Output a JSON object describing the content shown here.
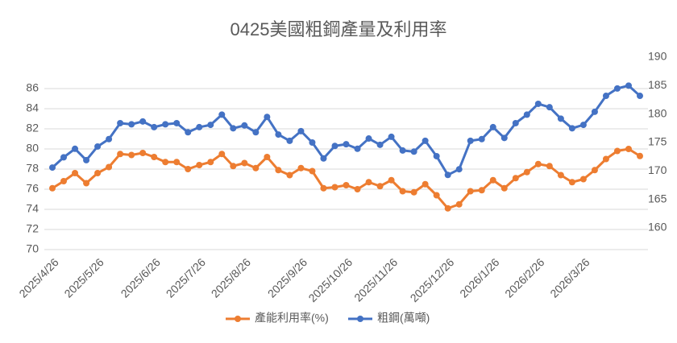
{
  "chart_data": {
    "type": "line",
    "title": "0425美國粗鋼產量及利用率",
    "categories": [
      "2025/4/26",
      null,
      null,
      null,
      "2025/5/26",
      null,
      null,
      null,
      null,
      "2025/6/26",
      null,
      null,
      null,
      "2025/7/26",
      null,
      null,
      null,
      "2025/8/26",
      null,
      null,
      null,
      null,
      "2025/9/26",
      null,
      null,
      null,
      "2025/10/26",
      null,
      null,
      null,
      "2025/11/26",
      null,
      null,
      null,
      null,
      "2025/12/26",
      null,
      null,
      null,
      "2026/1/26",
      null,
      null,
      null,
      "2026/2/26",
      null,
      null,
      null,
      "2026/3/26",
      null,
      null,
      null,
      null,
      null
    ],
    "series": [
      {
        "name": "產能利用率(%)",
        "color": "#ed7d31",
        "values": [
          76.1,
          76.8,
          77.6,
          76.6,
          77.6,
          78.2,
          79.5,
          79.4,
          79.6,
          79.2,
          78.7,
          78.7,
          78.0,
          78.4,
          78.7,
          79.5,
          78.3,
          78.6,
          78.1,
          79.2,
          77.9,
          77.4,
          78.1,
          77.8,
          76.1,
          76.2,
          76.4,
          76.0,
          76.7,
          76.3,
          76.9,
          75.8,
          75.7,
          76.5,
          75.4,
          74.1,
          74.5,
          75.8,
          75.9,
          76.9,
          76.1,
          77.1,
          77.7,
          78.5,
          78.3,
          77.4,
          76.7,
          77.0,
          77.9,
          79.0,
          79.8,
          80.0,
          79.3
        ]
      },
      {
        "name": "粗鋼(萬噸)",
        "color": "#4472c4",
        "axis": "y2",
        "values": [
          170.6,
          172.4,
          173.9,
          171.9,
          174.3,
          175.6,
          178.4,
          178.2,
          178.7,
          177.7,
          178.2,
          178.4,
          176.8,
          177.7,
          178.1,
          179.9,
          177.5,
          178.0,
          176.8,
          179.5,
          176.4,
          175.3,
          177.0,
          175.0,
          172.2,
          174.4,
          174.7,
          173.9,
          175.7,
          174.6,
          176.0,
          173.6,
          173.4,
          175.3,
          172.6,
          169.3,
          170.3,
          175.3,
          175.6,
          177.7,
          175.8,
          178.4,
          179.9,
          181.8,
          181.2,
          179.2,
          177.5,
          178.1,
          180.4,
          183.2,
          184.5,
          185.0,
          183.2
        ]
      }
    ],
    "ylim": [
      70,
      86
    ],
    "yticks": [
      70,
      72,
      74,
      76,
      78,
      80,
      82,
      84,
      86
    ],
    "y2lim": [
      160,
      190
    ],
    "y2ticks": [
      160,
      165,
      170,
      175,
      180,
      185,
      190
    ],
    "grid": true,
    "legend": "bottom"
  }
}
